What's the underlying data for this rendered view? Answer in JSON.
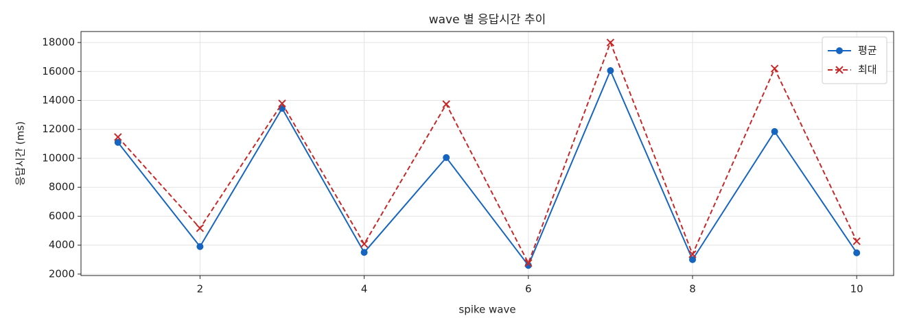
{
  "chart_data": {
    "type": "line",
    "title": "wave 별 응답시간 추이",
    "x_label": "spike wave",
    "y_label": "응답시간 (ms)",
    "x": [
      1,
      2,
      3,
      4,
      5,
      6,
      7,
      8,
      9,
      10
    ],
    "series": [
      {
        "name": "평균",
        "color": "#1565c0",
        "marker": "circle",
        "dash": false,
        "values": [
          11100,
          3900,
          13450,
          3500,
          10050,
          2600,
          16060,
          3000,
          11850,
          3470
        ]
      },
      {
        "name": "최대",
        "color": "#c62828",
        "marker": "x",
        "dash": true,
        "values": [
          11470,
          5170,
          13790,
          4080,
          13740,
          2760,
          18000,
          3370,
          16200,
          4270
        ]
      }
    ],
    "xlim": [
      0.55,
      10.45
    ],
    "xticks": [
      2,
      4,
      6,
      8,
      10
    ],
    "ylim": [
      1900,
      18760
    ],
    "yticks": [
      2000,
      4000,
      6000,
      8000,
      10000,
      12000,
      14000,
      16000,
      18000
    ],
    "grid": true,
    "legend": "upper-right"
  }
}
